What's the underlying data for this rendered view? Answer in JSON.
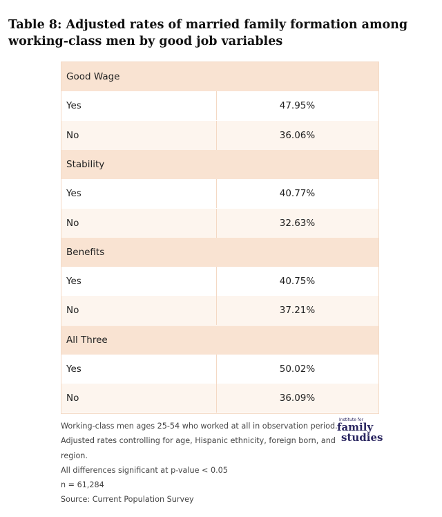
{
  "title": "Table 8: Adjusted rates of married family formation among working-class men by good job variables",
  "table": {
    "sections": [
      {
        "label": "Good Wage",
        "rows": [
          {
            "label": "Yes",
            "value": "47.95%"
          },
          {
            "label": "No",
            "value": "36.06%"
          }
        ]
      },
      {
        "label": "Stability",
        "rows": [
          {
            "label": "Yes",
            "value": "40.77%"
          },
          {
            "label": "No",
            "value": "32.63%"
          }
        ]
      },
      {
        "label": "Benefits",
        "rows": [
          {
            "label": "Yes",
            "value": "40.75%"
          },
          {
            "label": "No",
            "value": "37.21%"
          }
        ]
      },
      {
        "label": "All Three",
        "rows": [
          {
            "label": "Yes",
            "value": "50.02%"
          },
          {
            "label": "No",
            "value": "36.09%"
          }
        ]
      }
    ]
  },
  "notes": [
    "Working-class men ages 25-54 who worked at all in observation period.",
    "Adjusted rates controlling for age, Hispanic ethnicity, foreign born, and",
    "region.",
    "All differences significant at p-value < 0.05",
    "n = 61,284",
    "Source: Current Population Survey"
  ],
  "logo": {
    "small": "Institute for",
    "line1": "family",
    "line2": "studies"
  }
}
